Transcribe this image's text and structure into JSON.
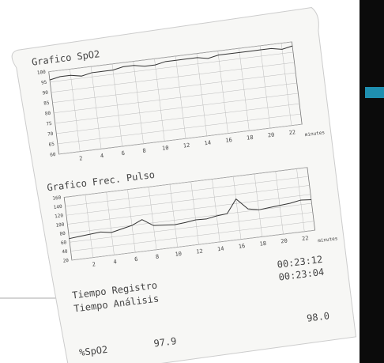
{
  "chart_data": [
    {
      "type": "line",
      "title": "Grafico SpO2",
      "xlabel": "minutes",
      "x": [
        0,
        1,
        2,
        3,
        4,
        5,
        6,
        7,
        8,
        9,
        10,
        11,
        12,
        13,
        14,
        15,
        16,
        17,
        18,
        19,
        20,
        21,
        22,
        23
      ],
      "series": [
        {
          "name": "SpO2",
          "color": "#333333",
          "values": [
            96,
            97,
            97,
            96,
            97,
            97,
            97,
            98,
            98,
            97,
            97,
            98,
            98,
            98,
            98,
            97,
            98,
            98,
            98,
            98,
            98,
            98,
            97,
            98
          ]
        }
      ],
      "xlim": [
        0,
        23
      ],
      "xticks": [
        2,
        4,
        6,
        8,
        10,
        12,
        14,
        16,
        18,
        20,
        22
      ],
      "ylim": [
        60,
        100
      ],
      "yticks": [
        60,
        65,
        70,
        75,
        80,
        85,
        90,
        95,
        100
      ],
      "grid": true
    },
    {
      "type": "line",
      "title": "Grafico Frec. Pulso",
      "xlabel": "minutes",
      "x": [
        0,
        1,
        2,
        3,
        4,
        5,
        6,
        7,
        8,
        9,
        10,
        11,
        12,
        13,
        14,
        15,
        16,
        17,
        18,
        19,
        20,
        21,
        22,
        23
      ],
      "series": [
        {
          "name": "Pulso",
          "color": "#333333",
          "values": [
            68,
            70,
            72,
            74,
            70,
            75,
            80,
            90,
            74,
            72,
            70,
            72,
            75,
            74,
            78,
            80,
            110,
            85,
            80,
            82,
            84,
            86,
            90,
            88
          ]
        }
      ],
      "xlim": [
        0,
        23
      ],
      "xticks": [
        2,
        4,
        6,
        8,
        10,
        12,
        14,
        16,
        18,
        20,
        22
      ],
      "ylim": [
        20,
        160
      ],
      "yticks": [
        20,
        40,
        60,
        80,
        100,
        120,
        140,
        160
      ],
      "grid": true
    }
  ],
  "report": {
    "record_label": "Tiempo Registro",
    "record_value": "00:23:12",
    "analysis_label": "Tiempo Análisis",
    "analysis_value": "00:23:04",
    "spo2_label": "%SpO2",
    "spo2_value": "97.9",
    "spo2_value_2": "98.0"
  }
}
